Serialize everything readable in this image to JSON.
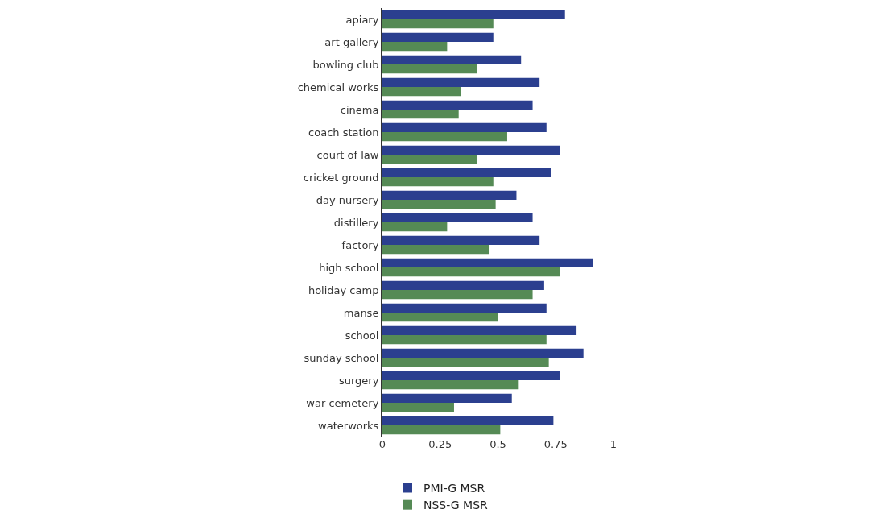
{
  "chart_data": {
    "type": "bar",
    "orientation": "horizontal",
    "categories": [
      "apiary",
      "art gallery",
      "bowling club",
      "chemical works",
      "cinema",
      "coach station",
      "court of law",
      "cricket ground",
      "day nursery",
      "distillery",
      "factory",
      "high school",
      "holiday camp",
      "manse",
      "school",
      "sunday school",
      "surgery",
      "war cemetery",
      "waterworks"
    ],
    "series": [
      {
        "name": "PMI-G MSR",
        "color": "#2b3f8f",
        "values": [
          0.79,
          0.48,
          0.6,
          0.68,
          0.65,
          0.71,
          0.77,
          0.73,
          0.58,
          0.65,
          0.68,
          0.91,
          0.7,
          0.71,
          0.84,
          0.87,
          0.77,
          0.56,
          0.74
        ]
      },
      {
        "name": "NSS-G MSR",
        "color": "#558a55",
        "values": [
          0.48,
          0.28,
          0.41,
          0.34,
          0.33,
          0.54,
          0.41,
          0.48,
          0.49,
          0.28,
          0.46,
          0.77,
          0.65,
          0.5,
          0.71,
          0.72,
          0.59,
          0.31,
          0.51
        ]
      }
    ],
    "xlim": [
      0,
      1
    ],
    "xticks": [
      0,
      0.25,
      0.5,
      0.75,
      1
    ],
    "grid": "x",
    "legend": "bottom"
  }
}
